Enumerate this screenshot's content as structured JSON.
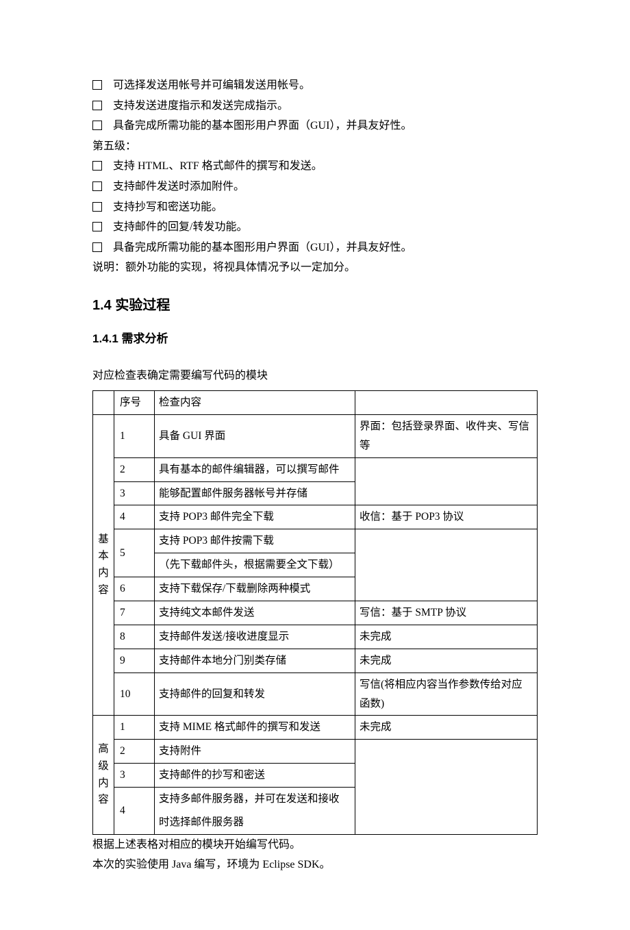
{
  "bullets1": [
    "可选择发送用帐号并可编辑发送用帐号。",
    "支持发送进度指示和发送完成指示。",
    "具备完成所需功能的基本图形用户界面（GUI），并具友好性。"
  ],
  "level5_label": "第五级：",
  "bullets2": [
    "支持 HTML、RTF 格式邮件的撰写和发送。",
    "支持邮件发送时添加附件。",
    "支持抄写和密送功能。",
    "支持邮件的回复/转发功能。",
    "具备完成所需功能的基本图形用户界面（GUI），并具友好性。"
  ],
  "note_line": "说明：额外功能的实现，将视具体情况予以一定加分。",
  "h2": "1.4  实验过程",
  "h3": "1.4.1  需求分析",
  "table_intro": "对应检查表确定需要编写代码的模块",
  "headers": {
    "num": "序号",
    "content": "检查内容",
    "note": ""
  },
  "cat1_chars": [
    "基",
    "本",
    "内",
    "容"
  ],
  "cat2_chars": [
    "高",
    "级",
    "内",
    "容"
  ],
  "basic": [
    {
      "num": "1",
      "content": "具备 GUI 界面",
      "note": "界面：包括登录界面、收件夹、写信等"
    },
    {
      "num": "2",
      "content": "具有基本的邮件编辑器，可以撰写邮件",
      "rowspan_note": 3
    },
    {
      "num": "3",
      "content": "能够配置邮件服务器帐号并存储"
    },
    {
      "num": "4",
      "content": "支持 POP3 邮件完全下载",
      "note": "收信：基于 POP3 协议"
    },
    {
      "num": "5",
      "content_a": "支持 POP3 邮件按需下载",
      "content_b": "（先下载邮件头，根据需要全文下载）",
      "rowspan_note": 3
    },
    {
      "num": "6",
      "content": "支持下载保存/下载删除两种模式"
    },
    {
      "num": "7",
      "content": "支持纯文本邮件发送",
      "note": "写信：基于 SMTP 协议"
    },
    {
      "num": "8",
      "content": "支持邮件发送/接收进度显示",
      "note": "未完成"
    },
    {
      "num": "9",
      "content": "支持邮件本地分门别类存储",
      "note": "未完成"
    },
    {
      "num": "10",
      "content": "支持邮件的回复和转发",
      "note": "写信(将相应内容当作参数传给对应函数)"
    }
  ],
  "advanced": [
    {
      "num": "1",
      "content": "支持 MIME 格式邮件的撰写和发送",
      "note": "未完成"
    },
    {
      "num": "2",
      "content": "支持附件",
      "rowspan_note": 4
    },
    {
      "num": "3",
      "content": "支持邮件的抄写和密送"
    },
    {
      "num": "4",
      "content_a": "支持多邮件服务器，并可在发送和接收",
      "content_b": "时选择邮件服务器"
    }
  ],
  "after1": "根据上述表格对相应的模块开始编写代码。",
  "after2": "本次的实验使用 Java 编写，环境为 Eclipse SDK。"
}
